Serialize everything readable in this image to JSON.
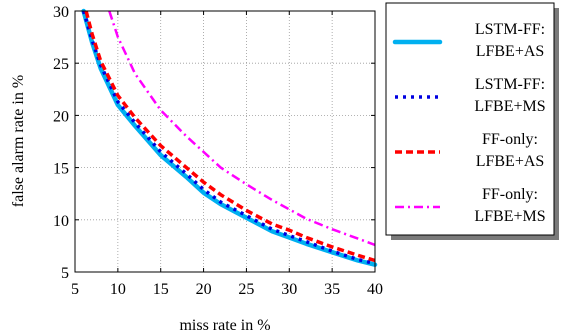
{
  "chart_data": {
    "type": "line",
    "title": "",
    "xlabel": "miss rate in %",
    "ylabel": "false alarm rate in %",
    "xlim": [
      5,
      40
    ],
    "ylim": [
      5,
      30
    ],
    "xticks": [
      "5",
      "10",
      "15",
      "20",
      "25",
      "30",
      "35",
      "40"
    ],
    "yticks": [
      "5",
      "10",
      "15",
      "20",
      "25",
      "30"
    ],
    "grid": true,
    "legend_position": "outside-right",
    "series": [
      {
        "name": "LSTM-FF: LFBE+AS",
        "legend_lines": [
          "LSTM-FF:",
          "LFBE+AS"
        ],
        "color": "#00b0f0",
        "style": "solid-thick",
        "x": [
          6,
          7,
          8,
          10,
          12,
          15,
          18,
          20,
          22,
          25,
          28,
          30,
          32,
          35,
          38,
          40
        ],
        "y": [
          30,
          27,
          24.5,
          21,
          19,
          16.2,
          14.1,
          12.6,
          11.5,
          10.2,
          8.9,
          8.3,
          7.7,
          6.9,
          6.1,
          5.7
        ]
      },
      {
        "name": "LSTM-FF: LFBE+MS",
        "legend_lines": [
          "LSTM-FF:",
          "LFBE+MS"
        ],
        "color": "#0000e0",
        "style": "dotted",
        "x": [
          6,
          7,
          8,
          10,
          12,
          15,
          18,
          20,
          22,
          25,
          28,
          30,
          32,
          35,
          38,
          40
        ],
        "y": [
          30,
          27.2,
          24.8,
          21.3,
          19.3,
          16.5,
          14.4,
          12.9,
          11.7,
          10.4,
          9.1,
          8.5,
          7.9,
          7,
          6.2,
          5.8
        ]
      },
      {
        "name": "FF-only: LFBE+AS",
        "legend_lines": [
          "FF-only:",
          "LFBE+AS"
        ],
        "color": "#ff0000",
        "style": "dashed",
        "x": [
          6.3,
          7,
          8,
          10,
          12,
          15,
          18,
          20,
          22,
          25,
          28,
          30,
          32,
          35,
          38,
          40
        ],
        "y": [
          30,
          27.8,
          25.2,
          21.9,
          19.8,
          17.1,
          15,
          13.6,
          12.4,
          10.9,
          9.6,
          9,
          8.3,
          7.4,
          6.6,
          6.1
        ]
      },
      {
        "name": "FF-only: LFBE+MS",
        "legend_lines": [
          "FF-only:",
          "LFBE+MS"
        ],
        "color": "#ff00ff",
        "style": "dash-dot",
        "x": [
          9,
          10,
          12,
          15,
          18,
          20,
          22,
          25,
          28,
          30,
          32,
          35,
          38,
          40
        ],
        "y": [
          30,
          27.5,
          24,
          20.5,
          18,
          16.5,
          15,
          13.4,
          11.9,
          11,
          10.1,
          9.1,
          8.2,
          7.6
        ]
      }
    ]
  }
}
